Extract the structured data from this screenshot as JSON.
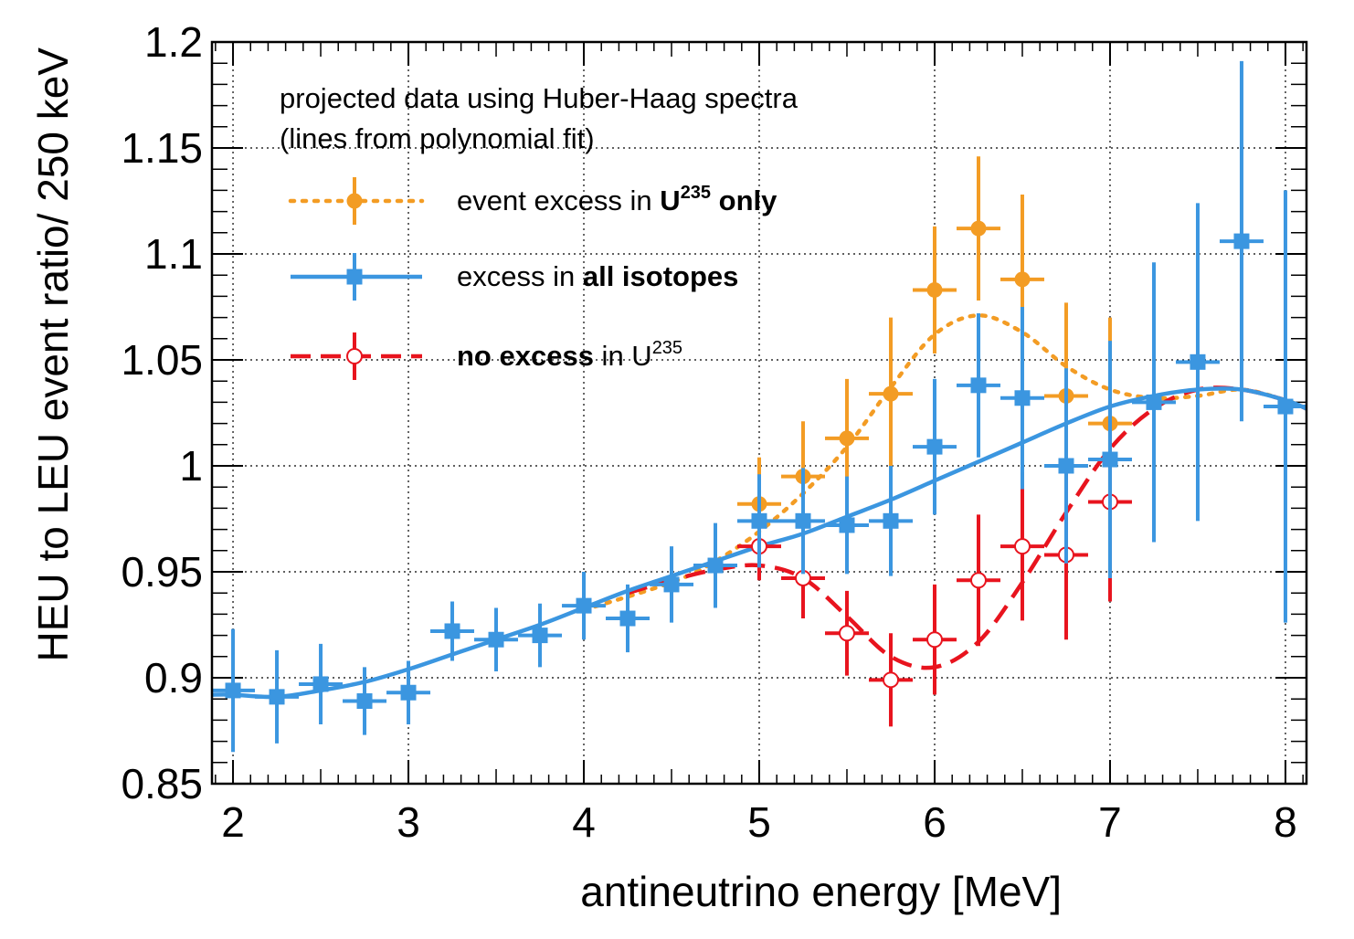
{
  "chart_data": {
    "type": "scatter",
    "xlabel": "antineutrino energy [MeV]",
    "ylabel": "HEU to LEU event ratio/ 250 keV",
    "xlim": [
      1.88,
      8.12
    ],
    "ylim": [
      0.85,
      1.2
    ],
    "x_ticks": [
      "2",
      "3",
      "4",
      "5",
      "6",
      "7",
      "8"
    ],
    "y_ticks": [
      "0.85",
      "0.9",
      "0.95",
      "1",
      "1.05",
      "1.1",
      "1.15",
      "1.2"
    ],
    "grid": true,
    "legend_position": "top-left",
    "legend_header": [
      "projected data using Huber-Haag spectra",
      "(lines from polynomial fit)"
    ],
    "legend": [
      {
        "pre": "event excess in ",
        "bold": "U",
        "bold_sup": "235",
        "bold2": " only",
        "post": "",
        "post_sup": ""
      },
      {
        "pre": "excess in ",
        "bold": "all isotopes",
        "bold_sup": "",
        "bold2": "",
        "post": "",
        "post_sup": ""
      },
      {
        "pre": "",
        "bold": "no excess",
        "bold_sup": "",
        "bold2": "",
        "post": " in U",
        "post_sup": "235"
      }
    ],
    "colors": {
      "u235": "#f39c24",
      "all": "#3b96e0",
      "none": "#e8141e"
    },
    "series": [
      {
        "key": "u235",
        "marker": "circle-filled",
        "line": "dotted",
        "points": [
          {
            "x": 5.0,
            "y": 0.982,
            "err": 0.022
          },
          {
            "x": 5.25,
            "y": 0.995,
            "err": 0.026
          },
          {
            "x": 5.5,
            "y": 1.013,
            "err": 0.028
          },
          {
            "x": 5.75,
            "y": 1.034,
            "err": 0.036
          },
          {
            "x": 6.0,
            "y": 1.083,
            "err": 0.03
          },
          {
            "x": 6.25,
            "y": 1.112,
            "err": 0.034
          },
          {
            "x": 6.5,
            "y": 1.088,
            "err": 0.04
          },
          {
            "x": 6.75,
            "y": 1.033,
            "err": 0.044
          },
          {
            "x": 7.0,
            "y": 1.02,
            "err": 0.05
          }
        ],
        "curve": [
          [
            4.0,
            0.932
          ],
          [
            4.5,
            0.945
          ],
          [
            4.75,
            0.955
          ],
          [
            5.0,
            0.969
          ],
          [
            5.25,
            0.987
          ],
          [
            5.5,
            1.009
          ],
          [
            5.75,
            1.037
          ],
          [
            6.0,
            1.062
          ],
          [
            6.25,
            1.071
          ],
          [
            6.5,
            1.063
          ],
          [
            6.75,
            1.047
          ],
          [
            7.0,
            1.036
          ],
          [
            7.25,
            1.032
          ],
          [
            7.5,
            1.033
          ],
          [
            7.75,
            1.036
          ],
          [
            8.0,
            1.031
          ],
          [
            8.12,
            1.027
          ]
        ]
      },
      {
        "key": "all",
        "marker": "square-filled",
        "line": "solid",
        "points": [
          {
            "x": 2.0,
            "y": 0.894,
            "err": 0.029
          },
          {
            "x": 2.25,
            "y": 0.891,
            "err": 0.022
          },
          {
            "x": 2.5,
            "y": 0.897,
            "err": 0.019
          },
          {
            "x": 2.75,
            "y": 0.889,
            "err": 0.016
          },
          {
            "x": 3.0,
            "y": 0.893,
            "err": 0.015
          },
          {
            "x": 3.25,
            "y": 0.922,
            "err": 0.014
          },
          {
            "x": 3.5,
            "y": 0.918,
            "err": 0.015
          },
          {
            "x": 3.75,
            "y": 0.92,
            "err": 0.015
          },
          {
            "x": 4.0,
            "y": 0.934,
            "err": 0.016
          },
          {
            "x": 4.25,
            "y": 0.928,
            "err": 0.016
          },
          {
            "x": 4.5,
            "y": 0.944,
            "err": 0.018
          },
          {
            "x": 4.75,
            "y": 0.953,
            "err": 0.02
          },
          {
            "x": 5.0,
            "y": 0.974,
            "err": 0.022
          },
          {
            "x": 5.25,
            "y": 0.974,
            "err": 0.025
          },
          {
            "x": 5.5,
            "y": 0.972,
            "err": 0.023
          },
          {
            "x": 5.75,
            "y": 0.974,
            "err": 0.026
          },
          {
            "x": 6.0,
            "y": 1.009,
            "err": 0.032
          },
          {
            "x": 6.25,
            "y": 1.038,
            "err": 0.034
          },
          {
            "x": 6.5,
            "y": 1.032,
            "err": 0.043
          },
          {
            "x": 6.75,
            "y": 1.0,
            "err": 0.046
          },
          {
            "x": 7.0,
            "y": 1.003,
            "err": 0.056
          },
          {
            "x": 7.25,
            "y": 1.03,
            "err": 0.066
          },
          {
            "x": 7.5,
            "y": 1.049,
            "err": 0.075
          },
          {
            "x": 7.75,
            "y": 1.106,
            "err": 0.085
          },
          {
            "x": 8.0,
            "y": 1.028,
            "err": 0.102
          }
        ],
        "curve": [
          [
            1.88,
            0.892
          ],
          [
            2.0,
            0.892
          ],
          [
            2.25,
            0.891
          ],
          [
            2.5,
            0.894
          ],
          [
            2.75,
            0.898
          ],
          [
            3.0,
            0.904
          ],
          [
            3.25,
            0.911
          ],
          [
            3.5,
            0.918
          ],
          [
            3.75,
            0.925
          ],
          [
            4.0,
            0.933
          ],
          [
            4.25,
            0.941
          ],
          [
            4.5,
            0.948
          ],
          [
            4.75,
            0.955
          ],
          [
            5.0,
            0.962
          ],
          [
            5.25,
            0.968
          ],
          [
            5.5,
            0.976
          ],
          [
            5.75,
            0.984
          ],
          [
            6.0,
            0.993
          ],
          [
            6.25,
            1.002
          ],
          [
            6.5,
            1.011
          ],
          [
            6.75,
            1.02
          ],
          [
            7.0,
            1.028
          ],
          [
            7.25,
            1.033
          ],
          [
            7.5,
            1.036
          ],
          [
            7.75,
            1.036
          ],
          [
            8.0,
            1.031
          ],
          [
            8.12,
            1.027
          ]
        ]
      },
      {
        "key": "none",
        "marker": "circle-open",
        "line": "dashed",
        "points": [
          {
            "x": 5.0,
            "y": 0.962,
            "err": 0.016
          },
          {
            "x": 5.25,
            "y": 0.947,
            "err": 0.019
          },
          {
            "x": 5.5,
            "y": 0.921,
            "err": 0.02
          },
          {
            "x": 5.75,
            "y": 0.899,
            "err": 0.022
          },
          {
            "x": 6.0,
            "y": 0.918,
            "err": 0.026
          },
          {
            "x": 6.25,
            "y": 0.946,
            "err": 0.031
          },
          {
            "x": 6.5,
            "y": 0.962,
            "err": 0.035
          },
          {
            "x": 6.75,
            "y": 0.958,
            "err": 0.04
          },
          {
            "x": 7.0,
            "y": 0.983,
            "err": 0.047
          }
        ],
        "curve": [
          [
            4.25,
            0.94
          ],
          [
            4.5,
            0.946
          ],
          [
            4.75,
            0.951
          ],
          [
            5.0,
            0.953
          ],
          [
            5.25,
            0.947
          ],
          [
            5.5,
            0.929
          ],
          [
            5.75,
            0.91
          ],
          [
            6.0,
            0.905
          ],
          [
            6.25,
            0.917
          ],
          [
            6.5,
            0.945
          ],
          [
            6.75,
            0.978
          ],
          [
            7.0,
            1.008
          ],
          [
            7.25,
            1.027
          ],
          [
            7.5,
            1.036
          ],
          [
            7.75,
            1.036
          ],
          [
            8.0,
            1.031
          ],
          [
            8.12,
            1.027
          ]
        ]
      }
    ]
  }
}
